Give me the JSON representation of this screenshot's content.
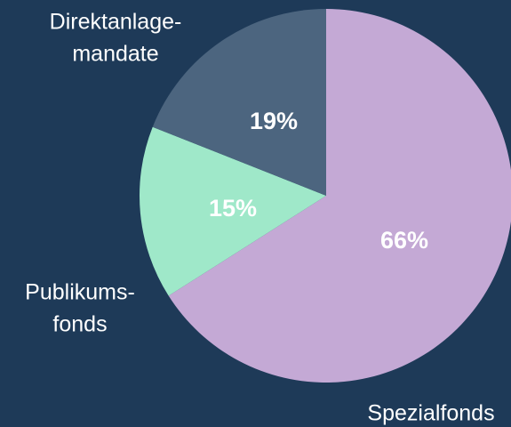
{
  "chart_data": {
    "type": "pie",
    "categories": [
      [
        "Spezialfonds"
      ],
      [
        "Publikums-",
        "fonds"
      ],
      [
        "Direktanlage-",
        "mandate"
      ]
    ],
    "values": [
      66,
      15,
      19
    ],
    "value_labels": [
      "66%",
      "15%",
      "19%"
    ],
    "colors": [
      "#c4a9d5",
      "#9fe8c9",
      "#4c657f"
    ]
  }
}
